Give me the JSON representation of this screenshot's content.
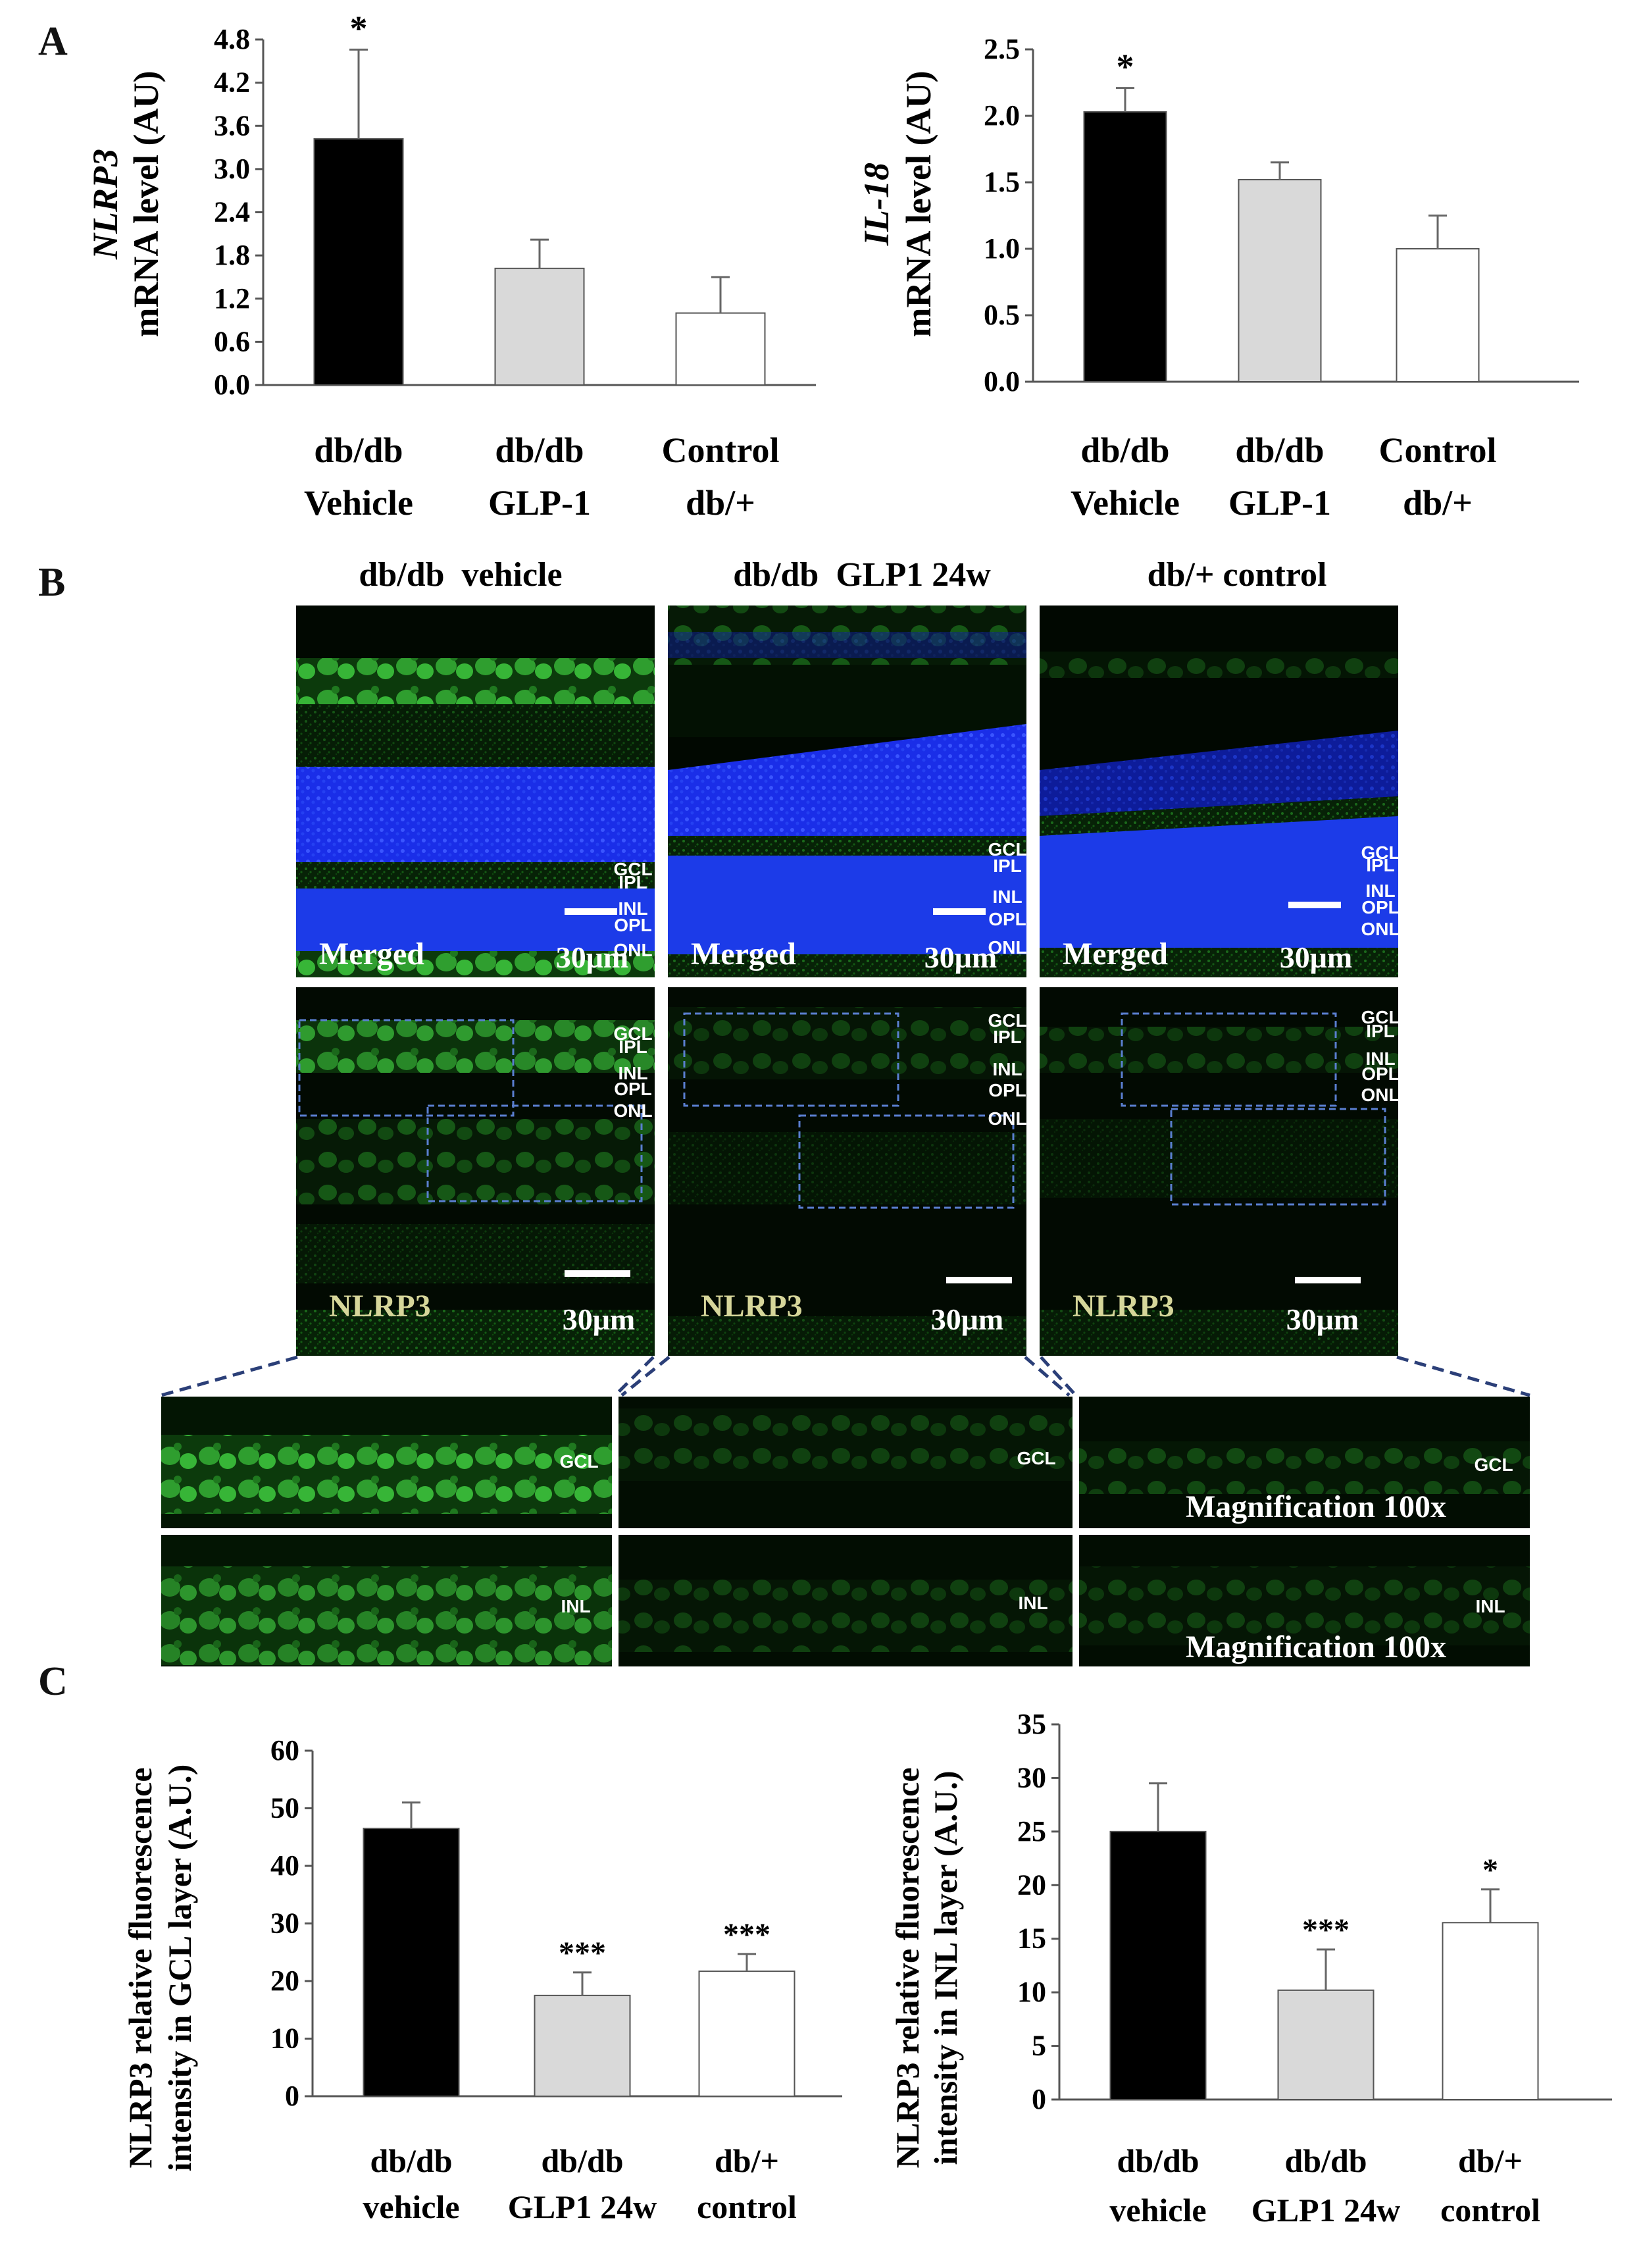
{
  "panels": {
    "a": "A",
    "b": "B",
    "c": "C"
  },
  "chart_data": [
    {
      "type": "bar",
      "panel": "A",
      "ylabel_italic": "NLRP3",
      "ylabel": "mRNA level (AU)",
      "categories": [
        [
          "db/db",
          "Vehicle"
        ],
        [
          "db/db",
          "GLP-1"
        ],
        [
          "Control",
          "db/+"
        ]
      ],
      "values": [
        3.42,
        1.62,
        1.0
      ],
      "errors": [
        1.24,
        0.4,
        0.5
      ],
      "significance": [
        "*",
        "",
        ""
      ],
      "ylim": [
        0,
        4.8
      ],
      "yticks": [
        "0.0",
        "0.6",
        "1.2",
        "1.8",
        "2.4",
        "3.0",
        "3.6",
        "4.2",
        "4.8"
      ],
      "colors": [
        "#000000",
        "#d9d9d9",
        "#ffffff"
      ]
    },
    {
      "type": "bar",
      "panel": "A",
      "ylabel_italic": "IL-18",
      "ylabel": "mRNA level (AU)",
      "categories": [
        [
          "db/db",
          "Vehicle"
        ],
        [
          "db/db",
          "GLP-1"
        ],
        [
          "Control",
          "db/+"
        ]
      ],
      "values": [
        2.03,
        1.52,
        1.0
      ],
      "errors": [
        0.18,
        0.13,
        0.25
      ],
      "significance": [
        "*",
        "",
        ""
      ],
      "ylim": [
        0,
        2.5
      ],
      "yticks": [
        "0.0",
        "0.5",
        "1.0",
        "1.5",
        "2.0",
        "2.5"
      ],
      "colors": [
        "#000000",
        "#d9d9d9",
        "#ffffff"
      ]
    },
    {
      "type": "bar",
      "panel": "C",
      "ylabel_line1": "NLRP3 relative fluorescence",
      "ylabel_line2": "intensity in GCL layer (A.U.)",
      "categories": [
        [
          "db/db",
          "vehicle"
        ],
        [
          "db/db",
          "GLP1 24w"
        ],
        [
          "db/+",
          "control"
        ]
      ],
      "values": [
        46.5,
        17.5,
        21.7
      ],
      "errors": [
        4.5,
        4.0,
        3.0
      ],
      "significance": [
        "",
        "***",
        "***"
      ],
      "ylim": [
        0,
        60
      ],
      "yticks": [
        "0",
        "10",
        "20",
        "30",
        "40",
        "50",
        "60"
      ],
      "colors": [
        "#000000",
        "#d9d9d9",
        "#ffffff"
      ]
    },
    {
      "type": "bar",
      "panel": "C",
      "ylabel_line1": "NLRP3 relative fluorescence",
      "ylabel_line2": "intensity in INL layer (A.U.)",
      "categories": [
        [
          "db/db",
          "vehicle"
        ],
        [
          "db/db",
          "GLP1 24w"
        ],
        [
          "db/+",
          "control"
        ]
      ],
      "values": [
        25.0,
        10.2,
        16.5
      ],
      "errors": [
        4.5,
        3.8,
        3.1
      ],
      "significance": [
        "",
        "***",
        "*"
      ],
      "ylim": [
        0,
        35
      ],
      "yticks": [
        "0",
        "5",
        "10",
        "15",
        "20",
        "25",
        "30",
        "35"
      ],
      "colors": [
        "#000000",
        "#d9d9d9",
        "#ffffff"
      ]
    }
  ],
  "micrographs": {
    "column_titles": [
      "db/db  vehicle",
      "db/db  GLP1 24w",
      "db/+ control"
    ],
    "merged_label": "Merged",
    "nlrp3_label": "NLRP3",
    "scale_label": "30μm",
    "magnification_label": "Magnification 100x",
    "top_layers": [
      [
        "GCL",
        "IPL",
        "INL",
        "OPL",
        "ONL"
      ],
      [
        "GCL",
        "IPL",
        "INL",
        "OPL",
        "ONL"
      ],
      [
        "GCL",
        "IPL",
        "INL",
        "OPL",
        "ONL"
      ]
    ],
    "mid_layers": [
      [
        "GCL",
        "IPL",
        "INL",
        "OPL",
        "ONL"
      ],
      [
        "GCL",
        "IPL",
        "INL",
        "OPL",
        "ONL"
      ],
      [
        "GCL",
        "IPL",
        "INL",
        "OPL",
        "ONL"
      ]
    ],
    "zoom_labels": [
      "GCL",
      "INL"
    ],
    "colors": {
      "nucleus": "#1e2cf0",
      "nlrp3": "#39d43a",
      "background": "#020a02"
    }
  }
}
